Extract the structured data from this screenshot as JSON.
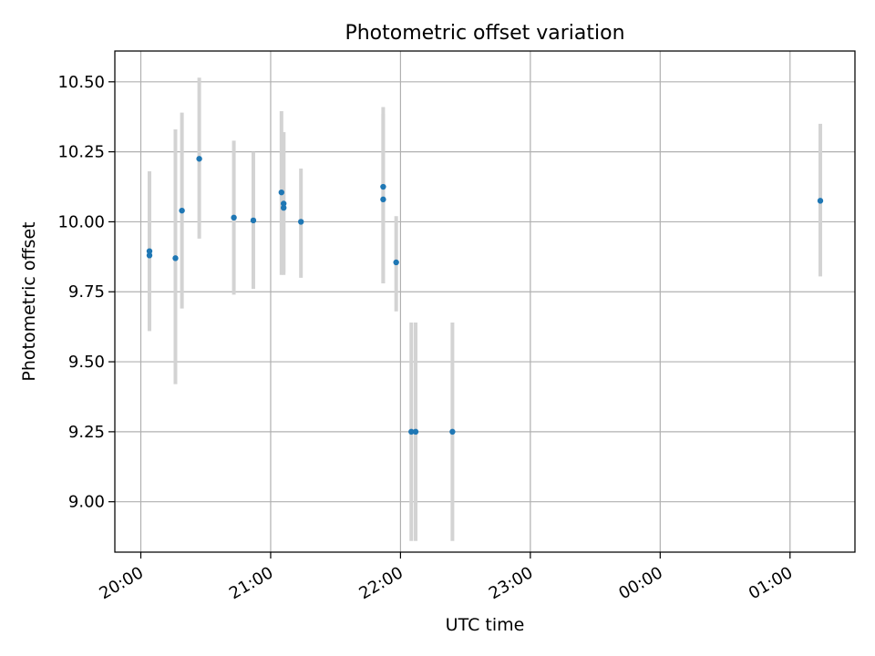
{
  "chart_data": {
    "type": "scatter",
    "title": "Photometric offset variation",
    "xlabel": "UTC time",
    "ylabel": "Photometric offset",
    "xlim": [
      "19:48",
      "01:30"
    ],
    "ylim": [
      8.82,
      10.61
    ],
    "grid": true,
    "legend": "none",
    "x_ticks": [
      "20:00",
      "21:00",
      "22:00",
      "23:00",
      "00:00",
      "01:00"
    ],
    "y_ticks": [
      "9.00",
      "9.25",
      "9.50",
      "9.75",
      "10.00",
      "10.25",
      "10.50"
    ],
    "series": [
      {
        "marker_color": "#1f77b4",
        "errorbar_color": "#d3d3d3",
        "points": [
          {
            "x": "20:04",
            "y": 9.88,
            "err_low": 9.61,
            "err_high": 10.18
          },
          {
            "x": "20:04",
            "y": 9.895,
            "err_low": 9.61,
            "err_high": 10.18
          },
          {
            "x": "20:16",
            "y": 9.87,
            "err_low": 9.42,
            "err_high": 10.33
          },
          {
            "x": "20:19",
            "y": 10.04,
            "err_low": 9.69,
            "err_high": 10.39
          },
          {
            "x": "20:27",
            "y": 10.225,
            "err_low": 9.94,
            "err_high": 10.515
          },
          {
            "x": "20:43",
            "y": 10.015,
            "err_low": 9.74,
            "err_high": 10.29
          },
          {
            "x": "20:52",
            "y": 10.005,
            "err_low": 9.76,
            "err_high": 10.25
          },
          {
            "x": "21:05",
            "y": 10.105,
            "err_low": 9.81,
            "err_high": 10.395
          },
          {
            "x": "21:06",
            "y": 10.05,
            "err_low": 9.81,
            "err_high": 10.32
          },
          {
            "x": "21:06",
            "y": 10.065,
            "err_low": 9.82,
            "err_high": 10.32
          },
          {
            "x": "21:14",
            "y": 10.0,
            "err_low": 9.8,
            "err_high": 10.19
          },
          {
            "x": "21:52",
            "y": 10.125,
            "err_low": 9.78,
            "err_high": 10.41
          },
          {
            "x": "21:52",
            "y": 10.08,
            "err_low": 9.78,
            "err_high": 10.385
          },
          {
            "x": "21:58",
            "y": 9.855,
            "err_low": 9.68,
            "err_high": 10.02
          },
          {
            "x": "22:05",
            "y": 9.25,
            "err_low": 8.86,
            "err_high": 9.64
          },
          {
            "x": "22:07",
            "y": 9.25,
            "err_low": 8.86,
            "err_high": 9.64
          },
          {
            "x": "22:24",
            "y": 9.25,
            "err_low": 8.86,
            "err_high": 9.64
          },
          {
            "x": "01:14",
            "y": 10.075,
            "err_low": 9.805,
            "err_high": 10.35
          }
        ]
      }
    ]
  }
}
